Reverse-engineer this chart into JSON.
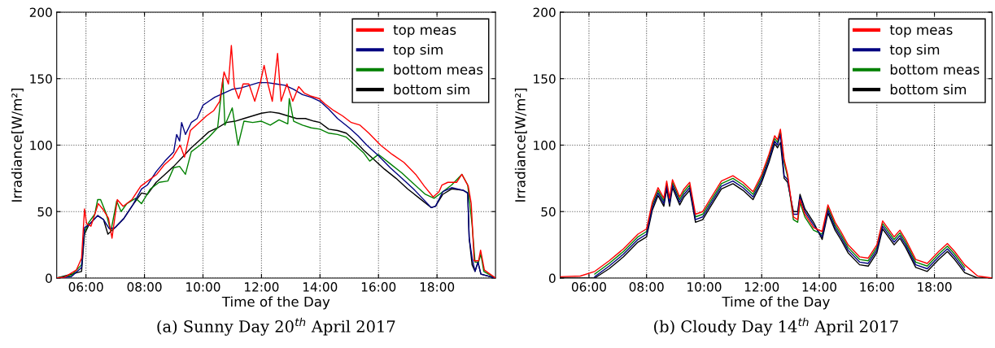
{
  "chart_data": [
    {
      "type": "line",
      "xlabel": "Time of the Day",
      "ylabel": "Irradiance[W/m²]",
      "annotations": [
        "(a) Sunny Day 20$^{th}$ April 2017"
      ],
      "xlim": [
        5,
        20
      ],
      "xticks": [
        {
          "value": 6,
          "label": "06:00"
        },
        {
          "value": 8,
          "label": "08:00"
        },
        {
          "value": 10,
          "label": "10:00"
        },
        {
          "value": 12,
          "label": "12:00"
        },
        {
          "value": 14,
          "label": "14:00"
        },
        {
          "value": 16,
          "label": "16:00"
        },
        {
          "value": 18,
          "label": "18:00"
        }
      ],
      "ylim": [
        0,
        200
      ],
      "yticks": [
        0,
        50,
        100,
        150,
        200
      ],
      "grid": true,
      "legend": "top right",
      "marker": "none",
      "line_style": "solid",
      "series": [
        {
          "name": "top meas",
          "color": "#ff0000",
          "x": [
            5.0,
            5.27,
            5.67,
            5.85,
            5.95,
            6.02,
            6.17,
            6.42,
            6.57,
            6.77,
            6.89,
            7.07,
            7.27,
            7.57,
            7.87,
            8.17,
            8.42,
            8.67,
            8.97,
            9.22,
            9.37,
            9.57,
            9.87,
            10.12,
            10.37,
            10.57,
            10.72,
            10.87,
            10.97,
            11.07,
            11.22,
            11.37,
            11.57,
            11.77,
            11.97,
            12.09,
            12.22,
            12.37,
            12.55,
            12.67,
            12.87,
            13.07,
            13.27,
            13.47,
            13.67,
            13.97,
            14.17,
            14.47,
            14.77,
            15.07,
            15.37,
            15.67,
            16.07,
            16.47,
            16.87,
            17.27,
            17.57,
            17.87,
            18.07,
            18.17,
            18.37,
            18.67,
            18.85,
            19.07,
            19.17,
            19.27,
            19.42,
            19.49,
            19.62,
            20.0
          ],
          "values": [
            0,
            0.7,
            6,
            15,
            52,
            41,
            39,
            56,
            52,
            45,
            30,
            59,
            54,
            59,
            69,
            74,
            78,
            85,
            91,
            100,
            91,
            111,
            117,
            122,
            126,
            133,
            155,
            146,
            175,
            144,
            135,
            146,
            146,
            133,
            148,
            160,
            146,
            133,
            169,
            133,
            146,
            133,
            144,
            139,
            137,
            135,
            131,
            126,
            122,
            117,
            115,
            109,
            100,
            93,
            87,
            78,
            69,
            61,
            65,
            70,
            72,
            72,
            78,
            69,
            56,
            13,
            13,
            21,
            6,
            0
          ]
        },
        {
          "name": "top sim",
          "color": "#000080",
          "x": [
            5.0,
            5.5,
            5.85,
            5.95,
            6.1,
            6.4,
            6.6,
            6.8,
            7.0,
            7.3,
            7.6,
            7.9,
            8.1,
            8.4,
            8.7,
            9.0,
            9.1,
            9.2,
            9.27,
            9.4,
            9.6,
            9.8,
            10.0,
            10.2,
            10.4,
            10.6,
            10.8,
            11.0,
            11.3,
            11.6,
            11.9,
            12.2,
            12.5,
            12.8,
            13.1,
            13.4,
            13.7,
            14.0,
            14.3,
            14.6,
            15.0,
            15.3,
            15.6,
            16.0,
            16.4,
            16.8,
            17.2,
            17.5,
            17.8,
            17.95,
            18.2,
            18.5,
            18.9,
            19.05,
            19.1,
            19.2,
            19.3,
            19.4,
            19.5,
            20.0
          ],
          "values": [
            0,
            1,
            8,
            38,
            40,
            47,
            44,
            37,
            38,
            45,
            55,
            67,
            70,
            80,
            88,
            95,
            108,
            103,
            117,
            108,
            117,
            120,
            130,
            133,
            136,
            138,
            140,
            142,
            143,
            145,
            147,
            147,
            146,
            145,
            142,
            138,
            136,
            133,
            127,
            120,
            113,
            107,
            100,
            92,
            83,
            75,
            67,
            60,
            53,
            54,
            65,
            68,
            66,
            64,
            30,
            15,
            5,
            12,
            3,
            0
          ]
        },
        {
          "name": "bottom meas",
          "color": "#008000",
          "x": [
            5.0,
            5.5,
            5.85,
            5.95,
            6.1,
            6.3,
            6.4,
            6.5,
            6.7,
            6.85,
            7.05,
            7.2,
            7.4,
            7.7,
            7.9,
            8.2,
            8.5,
            8.8,
            9.0,
            9.2,
            9.4,
            9.6,
            9.9,
            10.2,
            10.5,
            10.68,
            10.75,
            11.0,
            11.2,
            11.4,
            11.7,
            12.0,
            12.3,
            12.6,
            12.9,
            12.95,
            13.1,
            13.4,
            13.7,
            14.0,
            14.3,
            14.6,
            14.9,
            15.2,
            15.5,
            15.7,
            16.0,
            16.4,
            16.8,
            17.2,
            17.6,
            17.9,
            18.2,
            18.5,
            18.85,
            19.05,
            19.2,
            19.3,
            19.42,
            19.5,
            19.6,
            20.0
          ],
          "values": [
            0,
            2,
            10,
            35,
            42,
            48,
            59,
            59,
            48,
            35,
            58,
            50,
            56,
            60,
            56,
            67,
            72,
            73,
            83,
            84,
            78,
            95,
            100,
            106,
            113,
            150,
            115,
            128,
            100,
            118,
            117,
            118,
            115,
            119,
            116,
            135,
            118,
            115,
            113,
            112,
            109,
            108,
            106,
            100,
            94,
            88,
            93,
            86,
            79,
            71,
            63,
            60,
            65,
            70,
            78,
            70,
            40,
            12,
            12,
            18,
            5,
            0
          ]
        },
        {
          "name": "bottom sim",
          "color": "#000000",
          "x": [
            5.0,
            5.85,
            5.95,
            6.1,
            6.4,
            6.6,
            6.75,
            7.0,
            7.3,
            7.6,
            7.9,
            8.1,
            8.4,
            8.7,
            9.0,
            9.3,
            9.6,
            9.9,
            10.2,
            10.5,
            10.8,
            11.1,
            11.4,
            11.7,
            12.0,
            12.3,
            12.6,
            12.9,
            13.2,
            13.5,
            13.8,
            14.0,
            14.3,
            14.6,
            14.9,
            15.2,
            15.5,
            15.8,
            16.2,
            16.6,
            17.0,
            17.4,
            17.8,
            17.95,
            18.2,
            18.5,
            18.9,
            19.05,
            19.1,
            19.2,
            19.3,
            19.4,
            19.5,
            20.0
          ],
          "values": [
            0,
            5,
            33,
            40,
            47,
            44,
            33,
            38,
            45,
            55,
            64,
            63,
            72,
            78,
            84,
            91,
            98,
            104,
            110,
            113,
            117,
            118,
            120,
            122,
            124,
            125,
            124,
            122,
            120,
            120,
            118,
            117,
            112,
            111,
            109,
            103,
            96,
            90,
            82,
            75,
            67,
            60,
            53,
            54,
            63,
            67,
            66,
            64,
            30,
            10,
            5,
            12,
            3,
            0
          ]
        }
      ]
    },
    {
      "type": "line",
      "xlabel": "Time of the Day",
      "ylabel": "Irradiance[W/m²]",
      "annotations": [
        "(b) Cloudy Day 14$^{th}$ April 2017"
      ],
      "xlim": [
        5,
        20
      ],
      "xticks": [
        {
          "value": 6,
          "label": "06:00"
        },
        {
          "value": 8,
          "label": "08:00"
        },
        {
          "value": 10,
          "label": "10:00"
        },
        {
          "value": 12,
          "label": "12:00"
        },
        {
          "value": 14,
          "label": "14:00"
        },
        {
          "value": 16,
          "label": "16:00"
        },
        {
          "value": 18,
          "label": "18:00"
        }
      ],
      "ylim": [
        0,
        200
      ],
      "yticks": [
        0,
        50,
        100,
        150,
        200
      ],
      "grid": true,
      "legend": "top right",
      "marker": "none",
      "line_style": "solid",
      "series": [
        {
          "name": "top meas",
          "color": "#ff0000",
          "x": [
            5.0,
            5.7,
            6.2,
            6.7,
            7.2,
            7.7,
            8.0,
            8.2,
            8.4,
            8.6,
            8.7,
            8.8,
            8.9,
            9.15,
            9.3,
            9.5,
            9.7,
            9.95,
            10.2,
            10.6,
            11.0,
            11.35,
            11.7,
            12.0,
            12.25,
            12.45,
            12.55,
            12.65,
            12.78,
            12.9,
            13.1,
            13.25,
            13.33,
            13.5,
            13.8,
            14.1,
            14.3,
            14.55,
            14.75,
            15.0,
            15.4,
            15.7,
            16.0,
            16.2,
            16.6,
            16.8,
            17.0,
            17.35,
            17.75,
            18.15,
            18.45,
            18.7,
            19.05,
            19.5,
            20.0
          ],
          "values": [
            1,
            1.5,
            5,
            13,
            22,
            33,
            37,
            57,
            68,
            60,
            73,
            60,
            74,
            61,
            67,
            72,
            48,
            50,
            59,
            73,
            77,
            72,
            65,
            78,
            93,
            107,
            104,
            112,
            89,
            78,
            46,
            44,
            59,
            48,
            38,
            35,
            55,
            42,
            35,
            25,
            16,
            15,
            25,
            43,
            31,
            36,
            29,
            14,
            11,
            20,
            26,
            20,
            10,
            1.5,
            0
          ]
        },
        {
          "name": "top sim",
          "color": "#000080",
          "x": [
            6.2,
            6.7,
            7.2,
            7.7,
            8.0,
            8.2,
            8.4,
            8.6,
            8.7,
            8.8,
            8.9,
            9.15,
            9.3,
            9.5,
            9.7,
            9.95,
            10.2,
            10.6,
            11.0,
            11.35,
            11.7,
            12.0,
            12.25,
            12.45,
            12.55,
            12.65,
            12.78,
            12.9,
            13.1,
            13.25,
            13.33,
            13.5,
            13.8,
            14.1,
            14.3,
            14.55,
            14.75,
            15.0,
            15.4,
            15.7,
            16.0,
            16.2,
            16.6,
            16.8,
            17.0,
            17.35,
            17.75,
            18.15,
            18.45,
            18.7,
            19.05
          ],
          "values": [
            1,
            9,
            18,
            29,
            33,
            53,
            64,
            56,
            69,
            56,
            70,
            57,
            63,
            68,
            44,
            46,
            55,
            69,
            73,
            68,
            61,
            74,
            89,
            103,
            100,
            108,
            77,
            74,
            48,
            48,
            61,
            50,
            40,
            31,
            51,
            38,
            31,
            21,
            12,
            11,
            21,
            39,
            27,
            32,
            25,
            10,
            7,
            16,
            22,
            16,
            6
          ]
        },
        {
          "name": "bottom meas",
          "color": "#008000",
          "x": [
            6.2,
            6.7,
            7.2,
            7.7,
            8.0,
            8.2,
            8.4,
            8.6,
            8.7,
            8.8,
            8.9,
            9.15,
            9.3,
            9.5,
            9.7,
            9.95,
            10.2,
            10.6,
            11.0,
            11.35,
            11.7,
            12.0,
            12.25,
            12.45,
            12.55,
            12.65,
            12.78,
            12.9,
            13.1,
            13.25,
            13.33,
            13.5,
            13.8,
            14.1,
            14.3,
            14.55,
            14.75,
            15.0,
            15.4,
            15.7,
            16.0,
            16.2,
            16.6,
            16.8,
            17.0,
            17.35,
            17.75,
            18.15,
            18.45,
            18.7,
            19.05
          ],
          "values": [
            3,
            11,
            20,
            31,
            35,
            55,
            66,
            58,
            71,
            58,
            72,
            59,
            65,
            70,
            46,
            48,
            57,
            71,
            75,
            70,
            63,
            76,
            91,
            105,
            102,
            110,
            87,
            76,
            44,
            42,
            57,
            46,
            36,
            33,
            53,
            40,
            33,
            23,
            14,
            13,
            23,
            41,
            29,
            34,
            27,
            12,
            9,
            18,
            24,
            18,
            8
          ]
        },
        {
          "name": "bottom sim",
          "color": "#000000",
          "x": [
            5.0,
            5.7,
            6.2,
            6.7,
            7.2,
            7.7,
            8.0,
            8.2,
            8.4,
            8.6,
            8.7,
            8.8,
            8.9,
            9.15,
            9.3,
            9.5,
            9.7,
            9.95,
            10.2,
            10.6,
            11.0,
            11.35,
            11.7,
            12.0,
            12.25,
            12.45,
            12.55,
            12.65,
            12.78,
            12.9,
            13.1,
            13.25,
            13.33,
            13.5,
            13.8,
            14.1,
            14.3,
            14.55,
            14.75,
            15.0,
            15.4,
            15.7,
            16.0,
            16.2,
            16.6,
            16.8,
            17.0,
            17.35,
            17.75,
            18.15,
            18.45,
            18.7,
            19.05,
            19.5,
            20.0
          ],
          "values": [
            0,
            0,
            0,
            7,
            16,
            27,
            31,
            51,
            62,
            54,
            67,
            54,
            68,
            55,
            61,
            66,
            42,
            44,
            53,
            67,
            71,
            66,
            59,
            72,
            87,
            101,
            98,
            102,
            75,
            72,
            50,
            50,
            63,
            52,
            42,
            29,
            49,
            36,
            29,
            19,
            10,
            9,
            19,
            37,
            25,
            30,
            23,
            8,
            5,
            14,
            20,
            14,
            4,
            0,
            0
          ]
        }
      ]
    }
  ]
}
